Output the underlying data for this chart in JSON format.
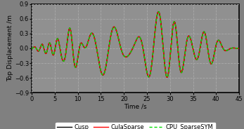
{
  "title": "",
  "xlabel": "Time /s",
  "ylabel": "Top Displacement /m",
  "xlim": [
    0,
    45
  ],
  "ylim": [
    -0.9,
    0.9
  ],
  "xticks": [
    0,
    5,
    10,
    15,
    20,
    25,
    30,
    35,
    40,
    45
  ],
  "yticks": [
    -0.9,
    -0.6,
    -0.3,
    0,
    0.3,
    0.6,
    0.9
  ],
  "grid_color": "#aaaaaa",
  "bg_color": "#808080",
  "plot_bg_color": "#909090",
  "line1_color": "#000000",
  "line2_color": "#ff0000",
  "line3_color": "#00dd00",
  "line1_label": "Cusp",
  "line2_label": "CulaSparse",
  "line3_label": "CPU_SparseSYM",
  "line1_lw": 1.0,
  "line2_lw": 1.0,
  "line3_lw": 1.0,
  "legend_fontsize": 6.0,
  "axis_fontsize": 6.5,
  "tick_fontsize": 6.0
}
